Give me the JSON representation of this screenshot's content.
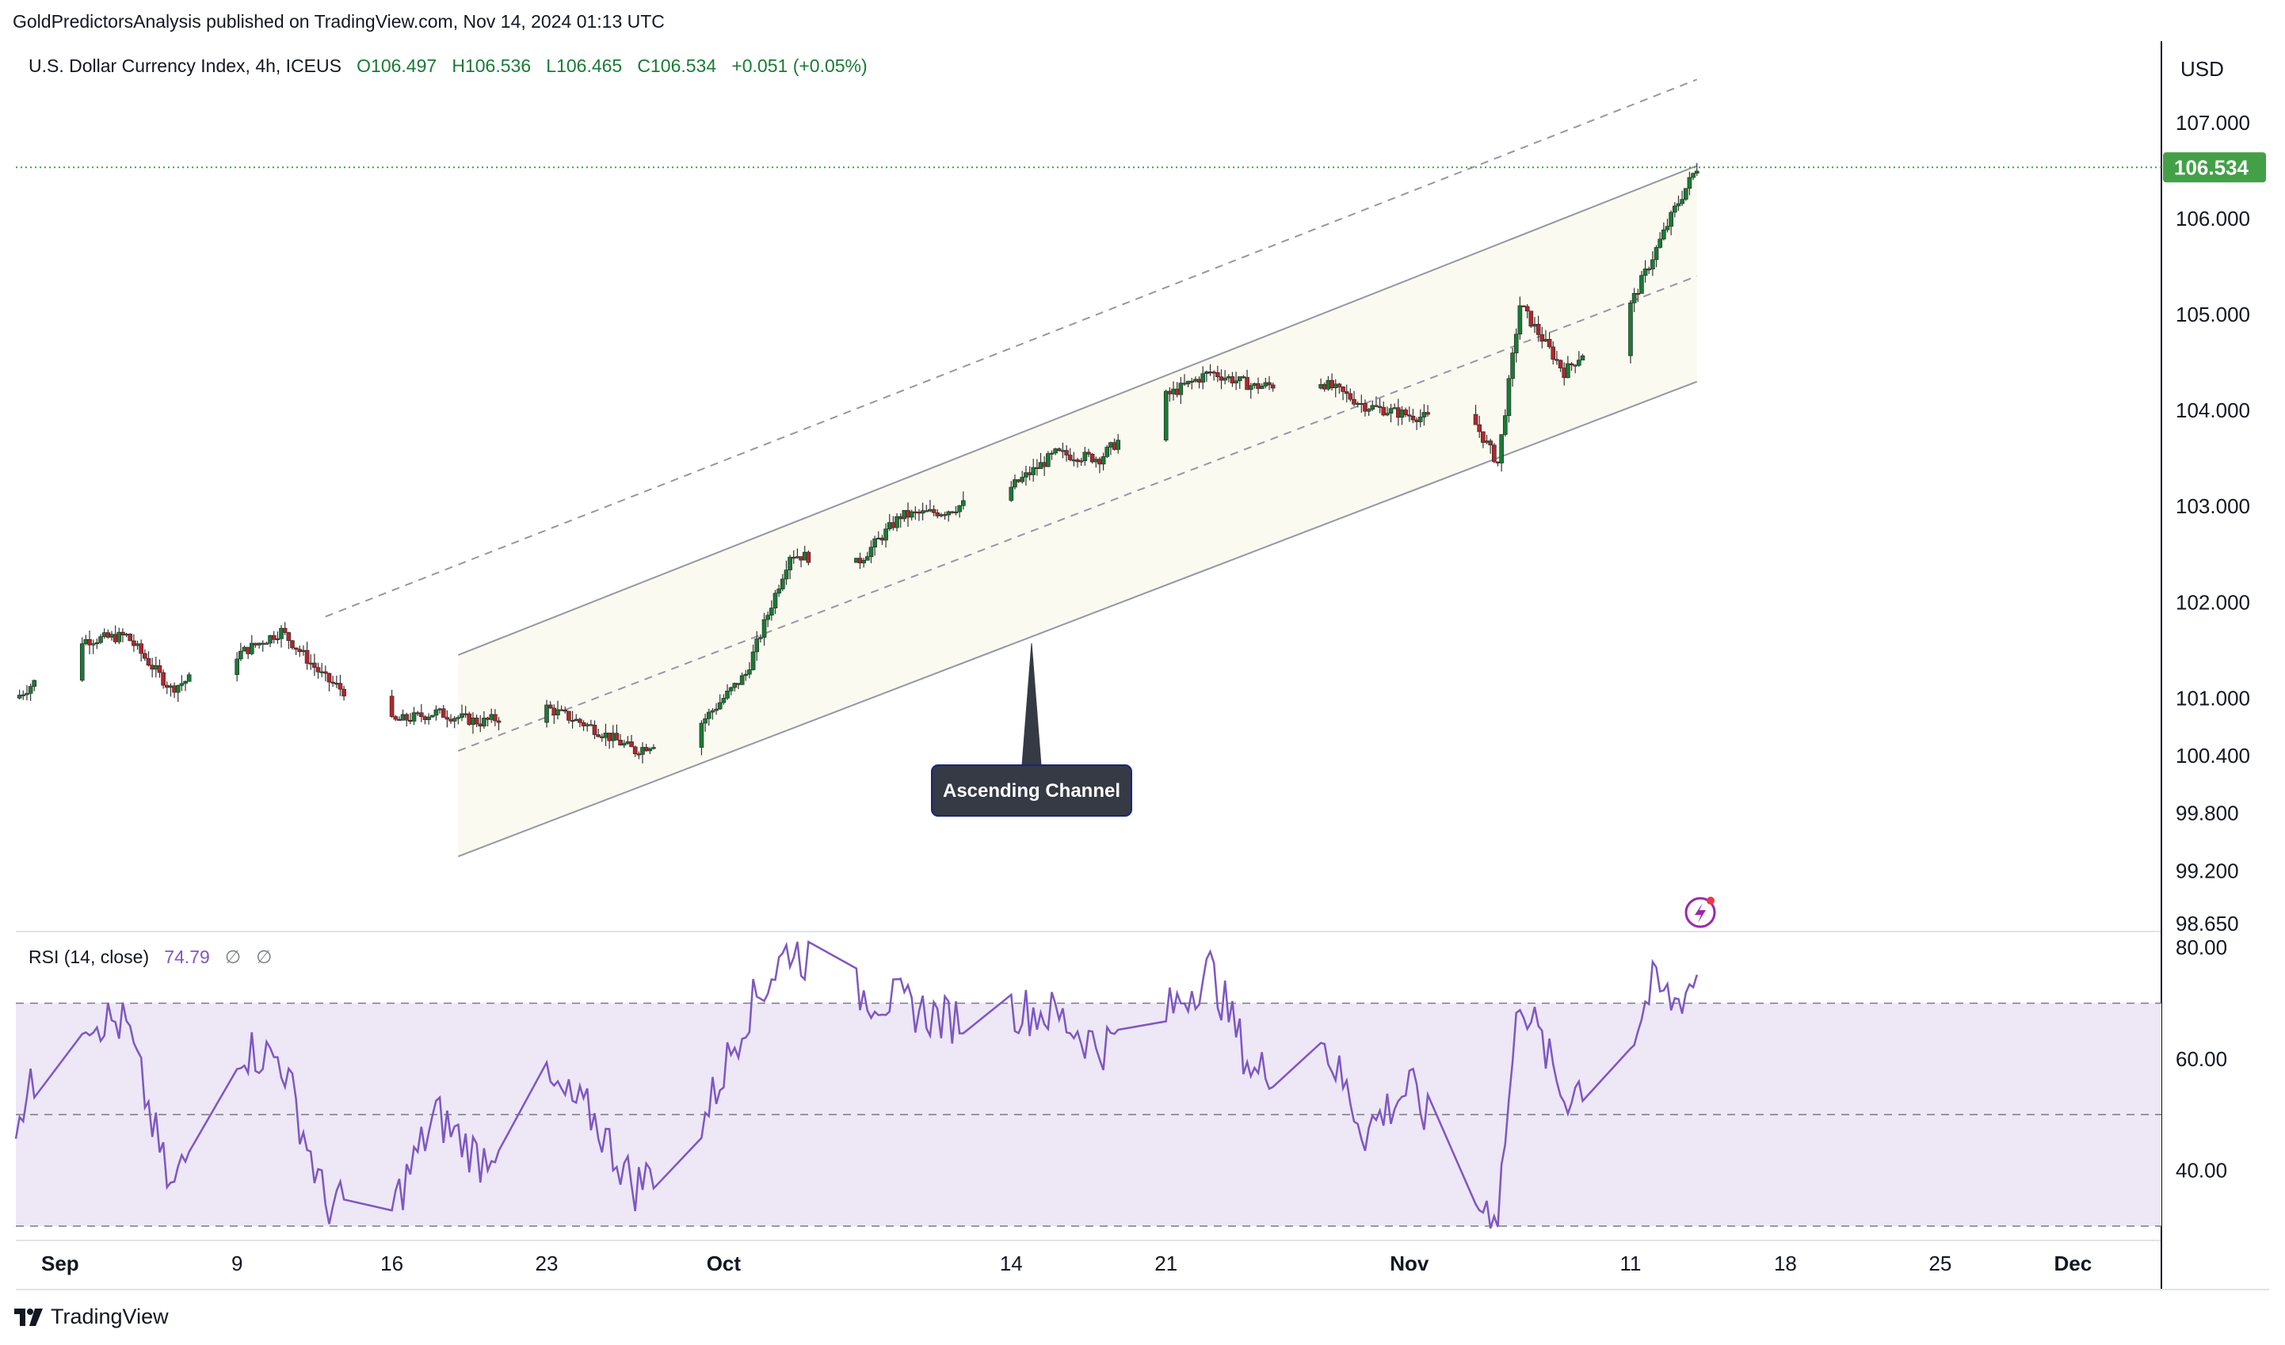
{
  "attribution": "GoldPredictorsAnalysis published on TradingView.com, Nov 14, 2024 01:13 UTC",
  "symbol": {
    "name": "U.S. Dollar Currency Index, 4h, ICEUS",
    "open": "O106.497",
    "high": "H106.536",
    "low": "L106.465",
    "close": "C106.534",
    "change": "+0.051 (+0.05%)"
  },
  "currency_button": "USD",
  "last_price": "106.534",
  "rsi_label": {
    "title": "RSI (14, close)",
    "value": "74.79",
    "extra1": "∅",
    "extra2": "∅"
  },
  "annotation": "Ascending Channel",
  "brand": "TradingView",
  "colors": {
    "up": "#1b7a36",
    "down": "#b0272c",
    "rsi": "#7e57c2",
    "rsi_band": "#ede7f6",
    "last_price_bg": "#43a047",
    "label_bg": "#363a45"
  },
  "chart_data": [
    {
      "type": "candlestick",
      "title": "U.S. Dollar Currency Index, 4h, ICEUS",
      "x_ticks": [
        "Sep",
        "9",
        "16",
        "23",
        "Oct",
        "14",
        "21",
        "Nov",
        "11",
        "18",
        "25",
        "Dec"
      ],
      "y_ticks": [
        "107.000",
        "106.000",
        "105.000",
        "104.000",
        "103.000",
        "102.000",
        "101.000",
        "100.400",
        "99.800",
        "99.200",
        "98.650"
      ],
      "ylim": [
        98.6,
        107.8
      ],
      "xlim": [
        "2024-08-30",
        "2024-12-05"
      ],
      "last_price": 106.534,
      "close_path": [
        [
          "2024-08-30",
          101.0
        ],
        [
          "2024-09-02",
          101.6
        ],
        [
          "2024-09-04",
          101.65
        ],
        [
          "2024-09-06",
          101.1
        ],
        [
          "2024-09-09",
          101.45
        ],
        [
          "2024-09-11",
          101.7
        ],
        [
          "2024-09-13",
          101.2
        ],
        [
          "2024-09-16",
          100.75
        ],
        [
          "2024-09-18",
          100.85
        ],
        [
          "2024-09-20",
          100.75
        ],
        [
          "2024-09-23",
          100.9
        ],
        [
          "2024-09-25",
          100.7
        ],
        [
          "2024-09-27",
          100.45
        ],
        [
          "2024-09-30",
          100.75
        ],
        [
          "2024-10-02",
          101.25
        ],
        [
          "2024-10-04",
          102.5
        ],
        [
          "2024-10-07",
          102.4
        ],
        [
          "2024-10-09",
          102.9
        ],
        [
          "2024-10-11",
          102.95
        ],
        [
          "2024-10-14",
          103.2
        ],
        [
          "2024-10-16",
          103.55
        ],
        [
          "2024-10-18",
          103.5
        ],
        [
          "2024-10-21",
          104.15
        ],
        [
          "2024-10-23",
          104.4
        ],
        [
          "2024-10-25",
          104.25
        ],
        [
          "2024-10-28",
          104.3
        ],
        [
          "2024-10-30",
          104.05
        ],
        [
          "2024-11-01",
          103.95
        ],
        [
          "2024-11-04",
          103.85
        ],
        [
          "2024-11-05",
          103.45
        ],
        [
          "2024-11-06",
          105.1
        ],
        [
          "2024-11-08",
          104.4
        ],
        [
          "2024-11-11",
          105.1
        ],
        [
          "2024-11-12",
          105.6
        ],
        [
          "2024-11-13",
          106.1
        ],
        [
          "2024-11-14",
          106.534
        ]
      ],
      "channel": {
        "label": "Ascending Channel",
        "upper": [
          [
            "2024-09-19",
            101.45
          ],
          [
            "2024-11-14",
            106.55
          ]
        ],
        "lower": [
          [
            "2024-09-19",
            99.35
          ],
          [
            "2024-11-14",
            104.3
          ]
        ],
        "upper_dashed": [
          [
            "2024-09-13",
            101.85
          ],
          [
            "2024-11-14",
            107.45
          ]
        ],
        "middle_dashed": [
          [
            "2024-09-19",
            100.45
          ],
          [
            "2024-11-14",
            105.4
          ]
        ]
      }
    },
    {
      "type": "line",
      "title": "RSI (14, close)",
      "y_ticks": [
        "80.00",
        "60.00",
        "40.00"
      ],
      "ylim": [
        28,
        82
      ],
      "bands": [
        70,
        50,
        30
      ],
      "last_value": 74.79,
      "series": [
        {
          "x": [
            "2024-08-30",
            "2024-09-02",
            "2024-09-04",
            "2024-09-06",
            "2024-09-09",
            "2024-09-11",
            "2024-09-13",
            "2024-09-16",
            "2024-09-18",
            "2024-09-20",
            "2024-09-23",
            "2024-09-25",
            "2024-09-27",
            "2024-09-30",
            "2024-10-02",
            "2024-10-04",
            "2024-10-07",
            "2024-10-09",
            "2024-10-11",
            "2024-10-14",
            "2024-10-16",
            "2024-10-18",
            "2024-10-21",
            "2024-10-23",
            "2024-10-25",
            "2024-10-28",
            "2024-10-30",
            "2024-11-01",
            "2024-11-04",
            "2024-11-05",
            "2024-11-06",
            "2024-11-08",
            "2024-11-11",
            "2024-11-12",
            "2024-11-13",
            "2024-11-14"
          ],
          "values": [
            50,
            68,
            66,
            36,
            62,
            60,
            34,
            33,
            50,
            42,
            55,
            50,
            37,
            48,
            68,
            80,
            72,
            70,
            67,
            69,
            68,
            62,
            68,
            76,
            57,
            64,
            47,
            55,
            34,
            33,
            72,
            53,
            63,
            73,
            70,
            74.79
          ]
        }
      ]
    }
  ]
}
